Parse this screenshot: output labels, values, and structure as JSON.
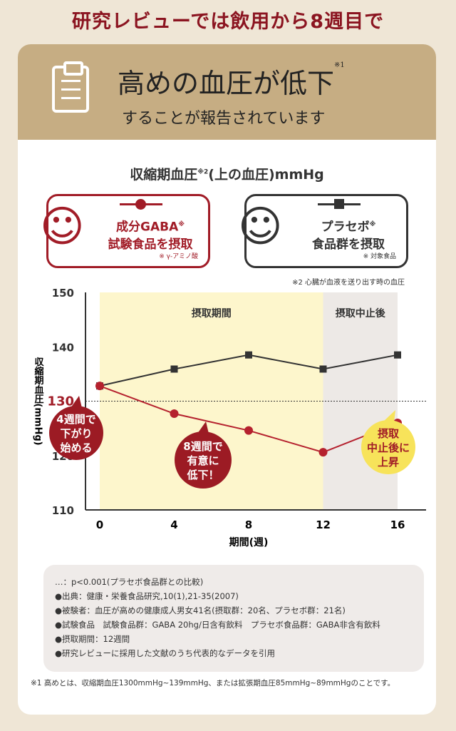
{
  "header": {
    "top": "研究レビューでは飲用から8週目で",
    "title_main": "高めの血圧が低下",
    "title_sup": "※1",
    "subtitle": "することが報告されています"
  },
  "legend": {
    "gaba": {
      "line1": "成分GABA",
      "sup": "※",
      "line2": "試験食品を摂取",
      "note": "※ γ-アミノ酸"
    },
    "placebo": {
      "line1": "プラセボ",
      "sup": "※",
      "line2": "食品群を摂取",
      "note": "※ 対象食品"
    },
    "note2": "※2 心臓が血液を送り出す時の血圧"
  },
  "chart_data": {
    "type": "line",
    "title": "収縮期血圧",
    "title_sup": "※2",
    "title_rest": "(上の血圧)mmHg",
    "ylabel": "収縮期血圧(mmHg)",
    "xlabel": "期間(週)",
    "x": [
      0,
      4,
      8,
      12,
      16
    ],
    "ylim": [
      110,
      150
    ],
    "yticks": [
      110,
      120,
      130,
      140,
      150
    ],
    "reference_line": 130,
    "regions": [
      {
        "label": "摂取期間",
        "from": 0,
        "to": 12,
        "color": "#fdf6cc"
      },
      {
        "label": "摂取中止後",
        "from": 12,
        "to": 16,
        "color": "#ede9e6"
      }
    ],
    "series": [
      {
        "name": "成分GABA試験食品を摂取",
        "color": "#b5212e",
        "marker": "circle",
        "values": [
          132.8,
          127.7,
          124.6,
          120.6,
          126
        ]
      },
      {
        "name": "プラセボ食品群を摂取",
        "color": "#333333",
        "marker": "square",
        "values": [
          132.8,
          135.9,
          138.5,
          135.9,
          138.5
        ]
      }
    ],
    "annotations": [
      {
        "text": [
          "4週間で",
          "下がり",
          "始める"
        ],
        "x": 4,
        "color": "#9c1b24"
      },
      {
        "text": [
          "8週間で",
          "有意に",
          "低下！"
        ],
        "x": 8,
        "color": "#9c1b24"
      },
      {
        "text": [
          "摂取",
          "中止後に",
          "上昇"
        ],
        "x": 16,
        "color": "#f7e35a"
      }
    ]
  },
  "notes": [
    "…：p<0.001(プラセボ食品群との比較)",
    "●出典：健康・栄養食品研究,10(1),21-35(2007)",
    "●被験者：血圧が高めの健康成人男女41名(摂取群：20名、プラセボ群：21名)",
    "●試験食品　試験食品群：GABA 20hg/日含有飲料　プラセボ食品群：GABA非含有飲料",
    "●摂取期間：12週間",
    "●研究レビューに採用した文献のうち代表的なデータを引用"
  ],
  "footnote": "※1 高めとは、収縮期血圧1300mmHg~139mmHg、または拡張期血圧85mmHg~89mmHgのことです。"
}
